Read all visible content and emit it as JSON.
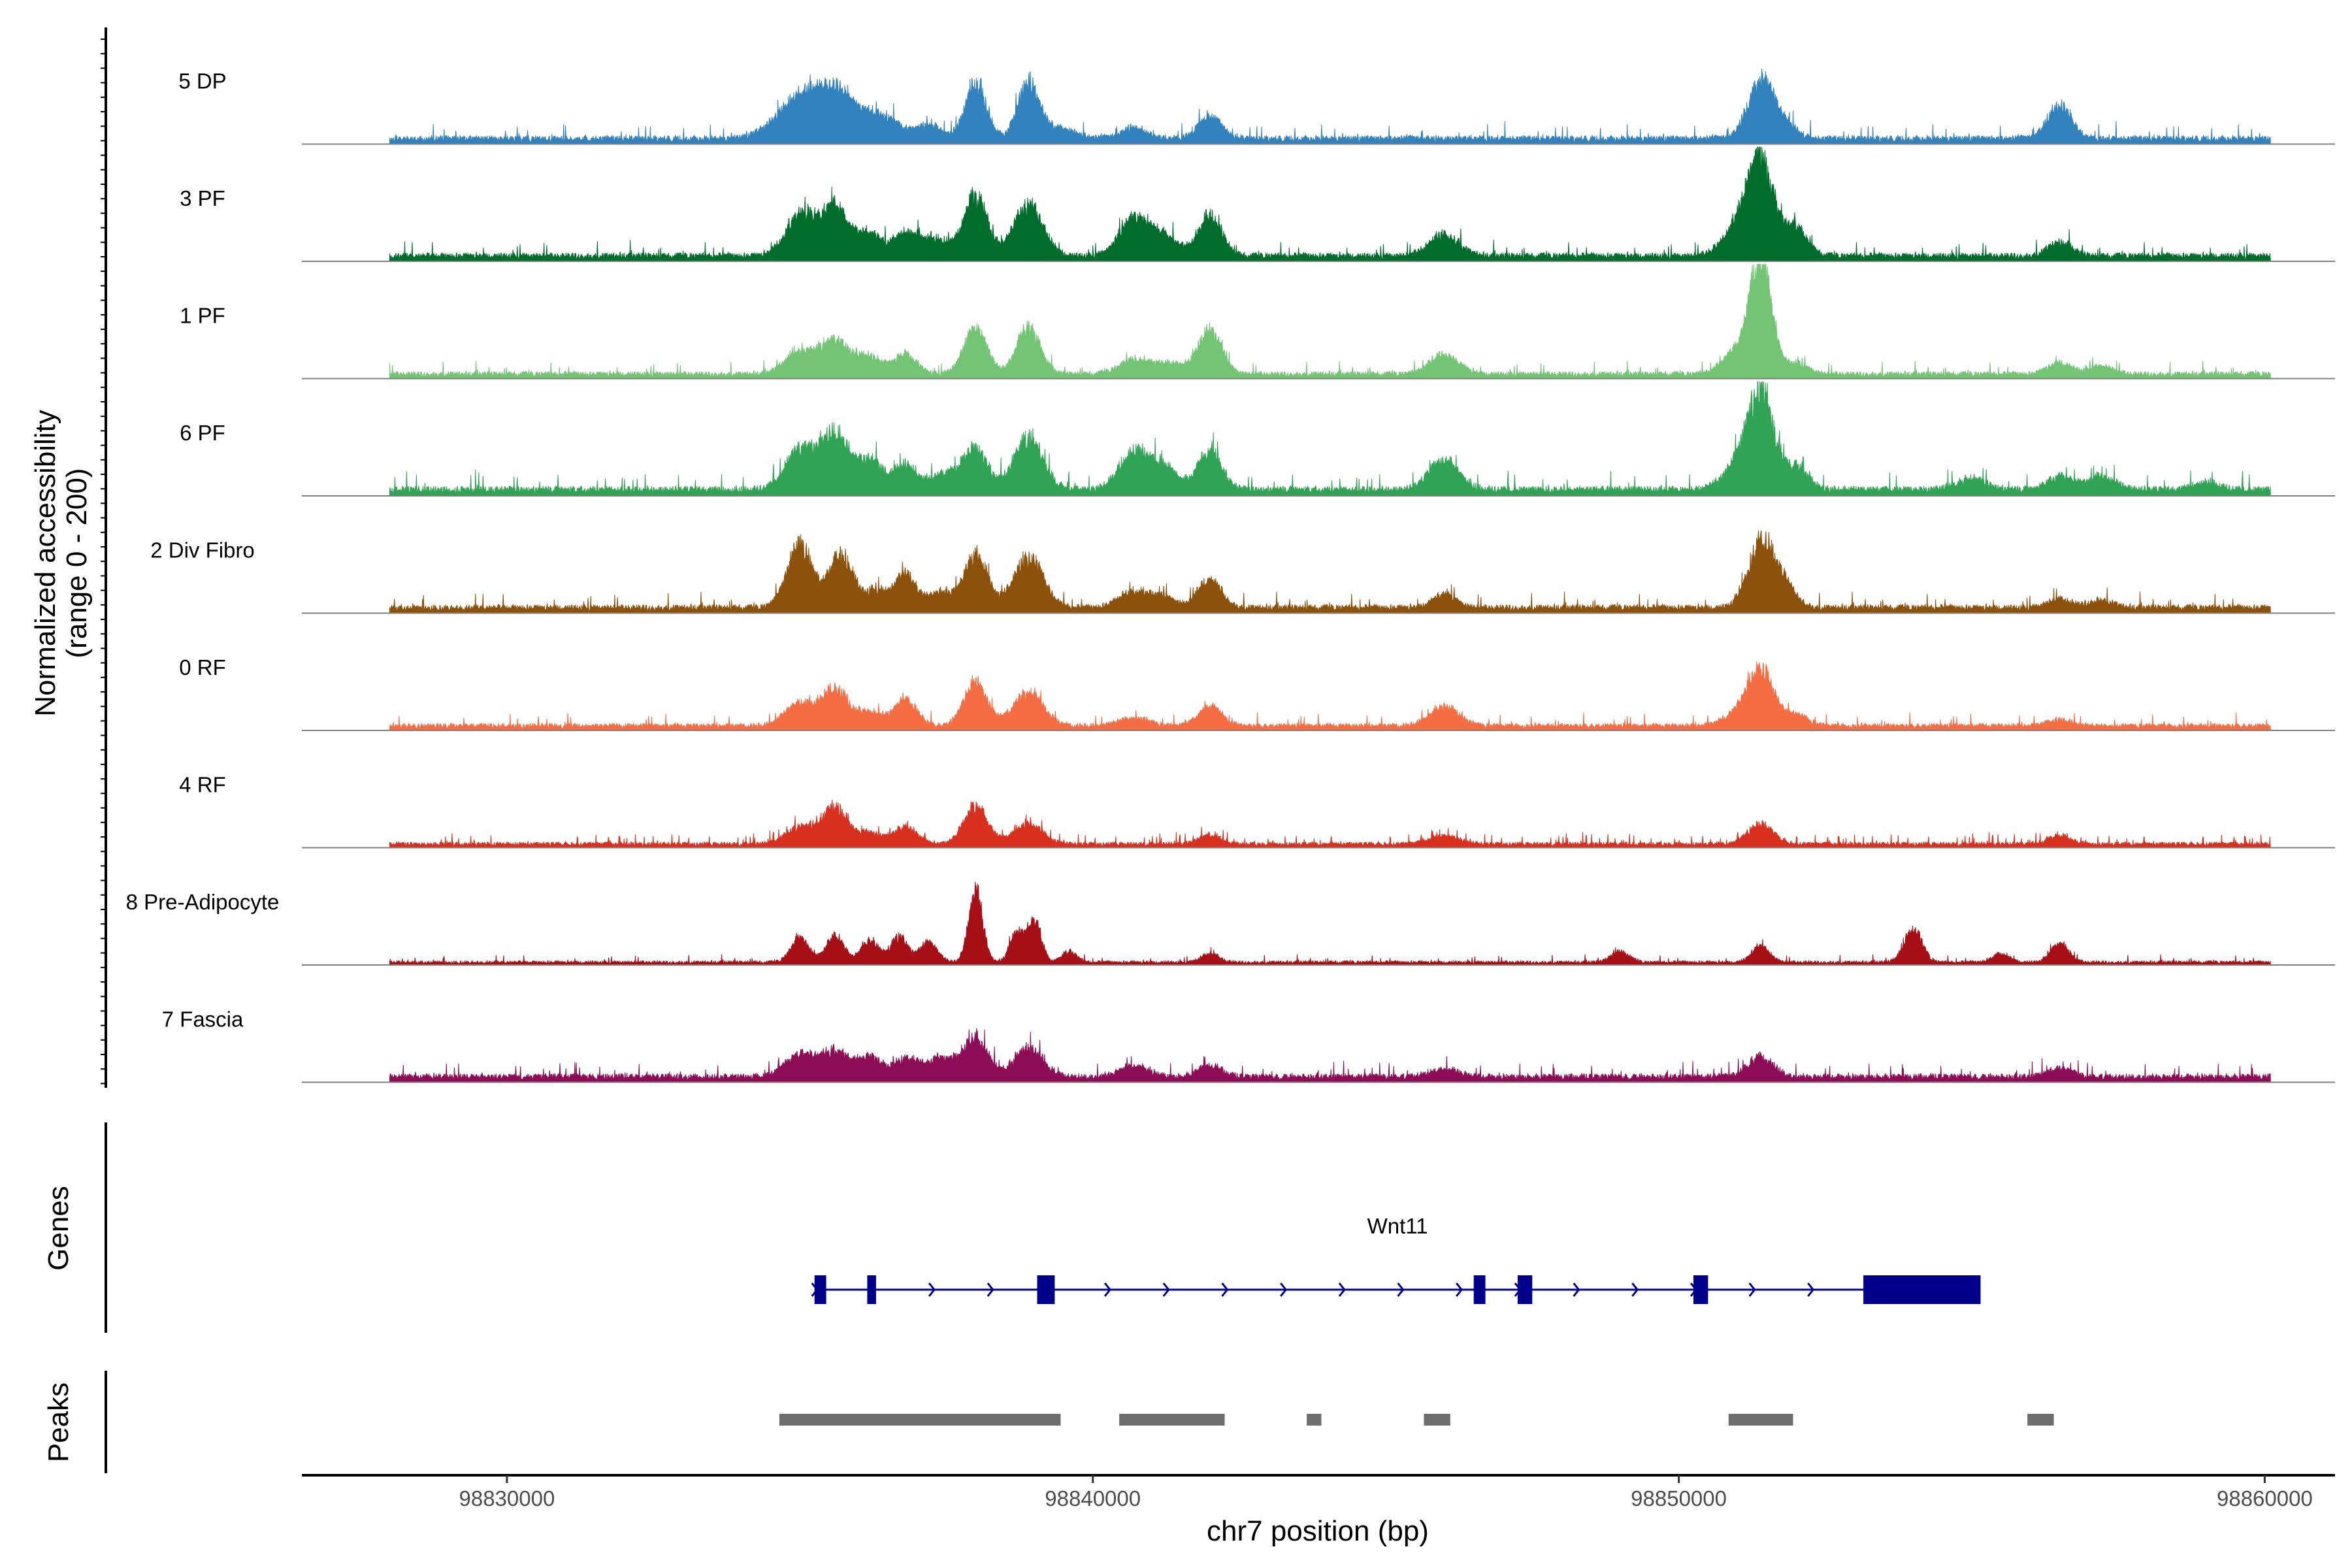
{
  "chart_data": {
    "type": "area",
    "title": "",
    "xlabel": "chr7 position (bp)",
    "ylabel_line1": "Normalized accessibility",
    "ylabel_line2": "(range 0 - 200)",
    "y_range": [
      0,
      200
    ],
    "x_range": [
      98826500,
      98861200
    ],
    "data_span": [
      98828000,
      98860100
    ],
    "x_ticks": [
      98830000,
      98840000,
      98850000,
      98860000
    ],
    "x_tick_labels": [
      "98830000",
      "98840000",
      "98850000",
      "98860000"
    ],
    "series": [
      {
        "name": "5 DP",
        "color": "#3182BD",
        "baseline": 12,
        "peaks": [
          [
            98834800,
            350,
            40
          ],
          [
            98835200,
            300,
            55
          ],
          [
            98835600,
            250,
            60
          ],
          [
            98836000,
            250,
            40
          ],
          [
            98836500,
            250,
            35
          ],
          [
            98837200,
            200,
            25
          ],
          [
            98838000,
            180,
            100
          ],
          [
            98838900,
            180,
            100
          ],
          [
            98839400,
            300,
            18
          ],
          [
            98840700,
            200,
            20
          ],
          [
            98842000,
            200,
            40
          ],
          [
            98851400,
            220,
            100
          ],
          [
            98851800,
            200,
            25
          ],
          [
            98856500,
            200,
            60
          ]
        ]
      },
      {
        "name": "3 PF",
        "color": "#006D2C",
        "baseline": 12,
        "peaks": [
          [
            98835000,
            250,
            70
          ],
          [
            98835600,
            250,
            85
          ],
          [
            98836200,
            200,
            40
          ],
          [
            98836800,
            200,
            40
          ],
          [
            98837300,
            250,
            30
          ],
          [
            98838000,
            200,
            105
          ],
          [
            98838900,
            250,
            90
          ],
          [
            98840700,
            250,
            65
          ],
          [
            98841200,
            250,
            35
          ],
          [
            98842000,
            200,
            70
          ],
          [
            98846000,
            250,
            40
          ],
          [
            98851400,
            220,
            165
          ],
          [
            98851000,
            250,
            50
          ],
          [
            98852000,
            200,
            50
          ],
          [
            98856500,
            200,
            25
          ]
        ]
      },
      {
        "name": "1 PF",
        "color": "#74C476",
        "baseline": 10,
        "peaks": [
          [
            98835000,
            250,
            40
          ],
          [
            98835600,
            250,
            60
          ],
          [
            98836200,
            200,
            30
          ],
          [
            98836800,
            200,
            35
          ],
          [
            98838000,
            200,
            80
          ],
          [
            98838900,
            200,
            85
          ],
          [
            98840700,
            250,
            25
          ],
          [
            98841300,
            250,
            20
          ],
          [
            98842000,
            200,
            80
          ],
          [
            98846000,
            250,
            35
          ],
          [
            98851400,
            180,
            215
          ],
          [
            98851000,
            250,
            40
          ],
          [
            98852000,
            200,
            20
          ],
          [
            98856500,
            200,
            20
          ],
          [
            98857200,
            200,
            15
          ]
        ]
      },
      {
        "name": "6 PF",
        "color": "#31A354",
        "baseline": 14,
        "peaks": [
          [
            98835000,
            250,
            70
          ],
          [
            98835600,
            250,
            100
          ],
          [
            98836200,
            200,
            50
          ],
          [
            98836800,
            200,
            45
          ],
          [
            98837500,
            250,
            30
          ],
          [
            98838000,
            200,
            70
          ],
          [
            98838900,
            250,
            90
          ],
          [
            98840700,
            250,
            65
          ],
          [
            98841200,
            250,
            40
          ],
          [
            98842000,
            200,
            70
          ],
          [
            98846000,
            250,
            55
          ],
          [
            98851400,
            220,
            165
          ],
          [
            98851000,
            250,
            40
          ],
          [
            98852000,
            200,
            40
          ],
          [
            98855000,
            250,
            20
          ],
          [
            98856500,
            200,
            25
          ],
          [
            98857200,
            250,
            25
          ],
          [
            98859000,
            200,
            15
          ]
        ]
      },
      {
        "name": "2 Div Fibro",
        "color": "#8C510A",
        "baseline": 12,
        "peaks": [
          [
            98835000,
            220,
            110
          ],
          [
            98835700,
            200,
            95
          ],
          [
            98836300,
            200,
            30
          ],
          [
            98836800,
            180,
            60
          ],
          [
            98837400,
            200,
            30
          ],
          [
            98838000,
            200,
            95
          ],
          [
            98838900,
            250,
            90
          ],
          [
            98840700,
            250,
            30
          ],
          [
            98841200,
            200,
            20
          ],
          [
            98842000,
            200,
            50
          ],
          [
            98846000,
            200,
            25
          ],
          [
            98851400,
            220,
            115
          ],
          [
            98851800,
            200,
            40
          ],
          [
            98856500,
            200,
            15
          ],
          [
            98857200,
            200,
            15
          ]
        ]
      },
      {
        "name": "0 RF",
        "color": "#F46D43",
        "baseline": 10,
        "peaks": [
          [
            98835000,
            250,
            40
          ],
          [
            98835600,
            220,
            65
          ],
          [
            98836200,
            200,
            25
          ],
          [
            98836800,
            200,
            45
          ],
          [
            98838000,
            200,
            75
          ],
          [
            98838900,
            250,
            60
          ],
          [
            98840700,
            250,
            15
          ],
          [
            98842000,
            200,
            35
          ],
          [
            98846000,
            250,
            35
          ],
          [
            98851400,
            220,
            100
          ],
          [
            98851000,
            250,
            20
          ],
          [
            98852000,
            200,
            20
          ],
          [
            98856500,
            200,
            12
          ]
        ]
      },
      {
        "name": "4 RF",
        "color": "#D7301F",
        "baseline": 8,
        "peaks": [
          [
            98835000,
            250,
            30
          ],
          [
            98835600,
            220,
            65
          ],
          [
            98836200,
            200,
            20
          ],
          [
            98836800,
            200,
            30
          ],
          [
            98838000,
            200,
            70
          ],
          [
            98838900,
            250,
            35
          ],
          [
            98842000,
            200,
            15
          ],
          [
            98846000,
            250,
            15
          ],
          [
            98851400,
            220,
            35
          ],
          [
            98856500,
            200,
            15
          ]
        ]
      },
      {
        "name": "8 Pre-Adipocyte",
        "color": "#A50F15",
        "baseline": 6,
        "peaks": [
          [
            98835000,
            150,
            45
          ],
          [
            98835600,
            150,
            50
          ],
          [
            98836200,
            150,
            40
          ],
          [
            98836700,
            150,
            45
          ],
          [
            98837200,
            150,
            35
          ],
          [
            98838000,
            120,
            130
          ],
          [
            98838700,
            120,
            50
          ],
          [
            98839000,
            120,
            75
          ],
          [
            98839600,
            120,
            20
          ],
          [
            98842000,
            150,
            15
          ],
          [
            98849000,
            150,
            20
          ],
          [
            98851400,
            150,
            30
          ],
          [
            98854000,
            150,
            60
          ],
          [
            98856500,
            150,
            35
          ],
          [
            98855500,
            150,
            15
          ]
        ]
      },
      {
        "name": "7 Fascia",
        "color": "#8C0D55",
        "baseline": 12,
        "peaks": [
          [
            98835000,
            250,
            40
          ],
          [
            98835600,
            250,
            45
          ],
          [
            98836200,
            200,
            35
          ],
          [
            98836800,
            200,
            30
          ],
          [
            98837400,
            250,
            35
          ],
          [
            98838000,
            200,
            70
          ],
          [
            98838900,
            250,
            50
          ],
          [
            98840700,
            250,
            20
          ],
          [
            98842000,
            200,
            20
          ],
          [
            98846000,
            250,
            15
          ],
          [
            98851400,
            220,
            35
          ],
          [
            98856500,
            200,
            15
          ]
        ]
      }
    ],
    "gene_track_label": "Genes",
    "gene": {
      "name": "Wnt11",
      "strand": "+",
      "color": "#00008B",
      "start": 98835250,
      "end": 98855150,
      "exons": [
        [
          98835250,
          98835450
        ],
        [
          98836150,
          98836300
        ],
        [
          98839050,
          98839350
        ],
        [
          98846500,
          98846700
        ],
        [
          98847250,
          98847500
        ],
        [
          98850250,
          98850500
        ],
        [
          98853150,
          98855150
        ]
      ]
    },
    "peak_track_label": "Peaks",
    "peak_color": "#6E6E6E",
    "peaks": [
      [
        98834650,
        98839450
      ],
      [
        98840450,
        98842250
      ],
      [
        98843650,
        98843900
      ],
      [
        98845650,
        98846100
      ],
      [
        98850850,
        98851950
      ],
      [
        98855950,
        98856400
      ]
    ]
  }
}
